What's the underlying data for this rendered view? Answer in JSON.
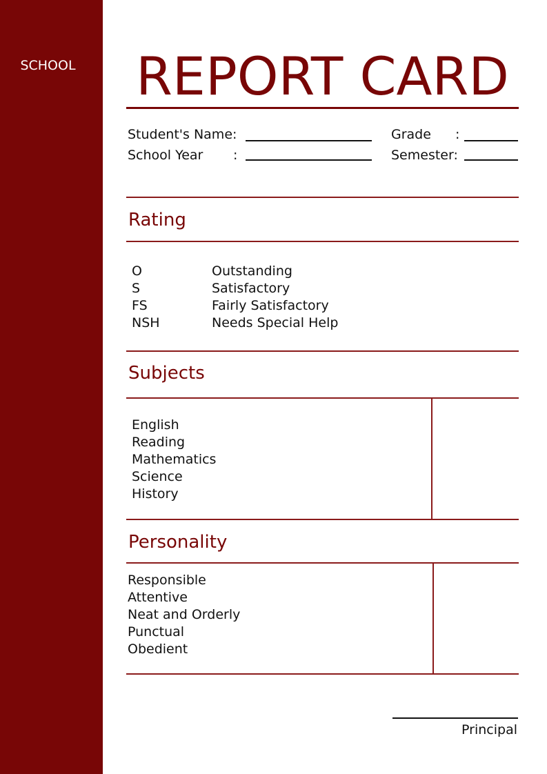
{
  "sidebar": {
    "label": "SCHOOL",
    "color": "#780606"
  },
  "title": "REPORT CARD",
  "fields": {
    "student_name": "Student's Name:",
    "school_year": "School Year",
    "school_year_colon": ":",
    "grade": "Grade",
    "grade_colon": ":",
    "semester": "Semester:"
  },
  "rating": {
    "heading": "Rating",
    "items": [
      {
        "code": "O",
        "label": "Outstanding"
      },
      {
        "code": "S",
        "label": "Satisfactory"
      },
      {
        "code": "FS",
        "label": "Fairly Satisfactory"
      },
      {
        "code": "NSH",
        "label": "Needs Special Help"
      }
    ]
  },
  "subjects": {
    "heading": "Subjects",
    "items": [
      "English",
      "Reading",
      "Mathematics",
      "Science",
      "History"
    ]
  },
  "personality": {
    "heading": "Personality",
    "items": [
      "Responsible",
      "Attentive",
      "Neat and Orderly",
      "Punctual",
      "Obedient"
    ]
  },
  "signature": {
    "label": "Principal"
  }
}
